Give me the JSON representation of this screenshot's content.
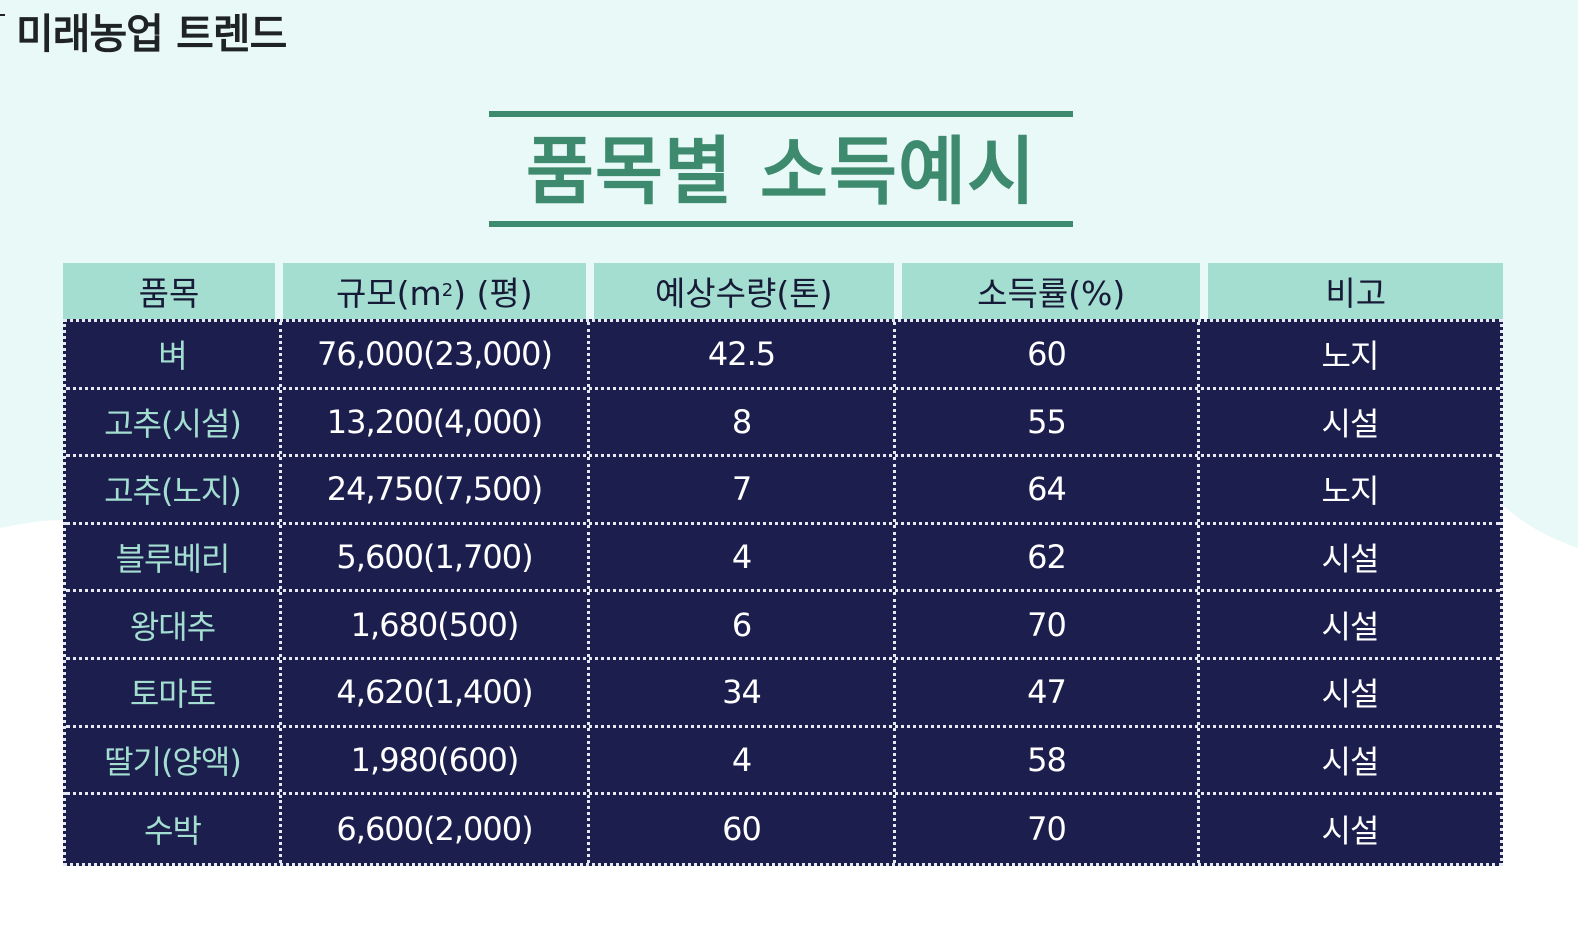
{
  "brand": "미래농업 트렌드",
  "title": "품목별 소득예시",
  "colors": {
    "accent": "#3d8a6e",
    "header_bg": "#a4ded1",
    "table_bg": "#1c1e4e",
    "item_text": "#a4ded1",
    "background": "#e9f9f8"
  },
  "table": {
    "headers": {
      "item": "품목",
      "scale_pre": "규모(m",
      "scale_sup": "2",
      "scale_post": ") (평)",
      "yield": "예상수량(톤)",
      "margin": "소득률(%)",
      "note": "비고"
    },
    "rows": [
      {
        "item": "벼",
        "scale": "76,000(23,000)",
        "yield": "42.5",
        "margin": "60",
        "note": "노지"
      },
      {
        "item": "고추(시설)",
        "scale": "13,200(4,000)",
        "yield": "8",
        "margin": "55",
        "note": "시설"
      },
      {
        "item": "고추(노지)",
        "scale": "24,750(7,500)",
        "yield": "7",
        "margin": "64",
        "note": "노지"
      },
      {
        "item": "블루베리",
        "scale": "5,600(1,700)",
        "yield": "4",
        "margin": "62",
        "note": "시설"
      },
      {
        "item": "왕대추",
        "scale": "1,680(500)",
        "yield": "6",
        "margin": "70",
        "note": "시설"
      },
      {
        "item": "토마토",
        "scale": "4,620(1,400)",
        "yield": "34",
        "margin": "47",
        "note": "시설"
      },
      {
        "item": "딸기(양액)",
        "scale": "1,980(600)",
        "yield": "4",
        "margin": "58",
        "note": "시설"
      },
      {
        "item": "수박",
        "scale": "6,600(2,000)",
        "yield": "60",
        "margin": "70",
        "note": "시설"
      }
    ]
  }
}
